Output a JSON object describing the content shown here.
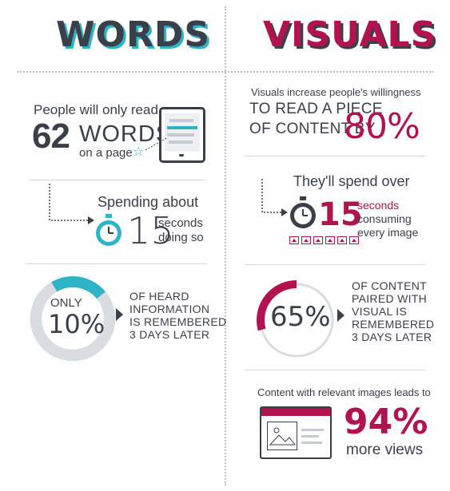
{
  "left": {
    "heading": "WORDS",
    "read_intro": "People will only read",
    "word_count": "62",
    "words_label": "WORDS",
    "page_label": "on a page",
    "star_glyph": "☆",
    "spending_label": "Spending about",
    "seconds_value": "15",
    "seconds_line1": "seconds",
    "seconds_line2": "doing so",
    "ring_top": "ONLY",
    "ring_value": "10%",
    "ring_fraction": 0.1,
    "fact_lines": [
      "OF HEARD",
      "INFORMATION",
      "IS REMEMBERED",
      "3 DAYS LATER"
    ]
  },
  "right": {
    "heading": "VISUALS",
    "willing_line": "Visuals increase people's willingness",
    "read_line1": "TO READ A PIECE",
    "read_line2": "OF CONTENT BY",
    "percent_increase": "80%",
    "spend_over": "They'll spend over",
    "seconds_value": "15",
    "seconds_lines": [
      "seconds",
      "consuming",
      "every image"
    ],
    "ring_value": "65%",
    "ring_fraction": 0.65,
    "fact_lines": [
      "OF CONTENT",
      "PAIRED WITH",
      "VISUAL IS",
      "REMEMBERED",
      "3 DAYS LATER"
    ],
    "relevant_line": "Content with relevant images leads to",
    "views_value": "94%",
    "views_label": "more views"
  },
  "colors": {
    "dark": "#3a3f4a",
    "teal": "#2fb3c6",
    "magenta": "#b2124f",
    "ring_track": "#d9dde2"
  },
  "icons": {
    "tablet": "tablet-icon",
    "stopwatch": "stopwatch-icon",
    "image": "image-icon",
    "browser": "browser-window-icon",
    "arrow": "triangle-right-icon"
  }
}
